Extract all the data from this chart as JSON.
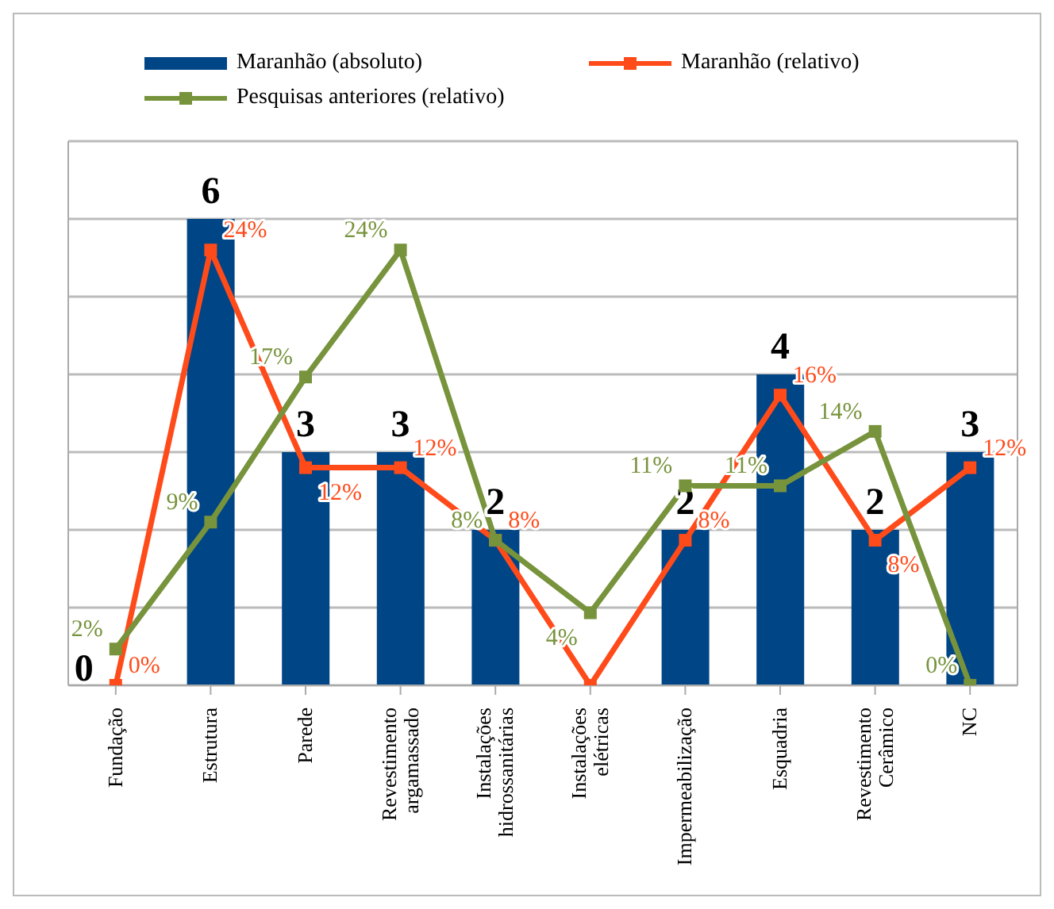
{
  "chart_data": {
    "type": "bar",
    "categories": [
      "Fundação",
      "Estrutura",
      "Parede",
      "Revestimento argamassado",
      "Instalações hidrossanitárias",
      "Instalações elétricas",
      "Impermeabilização",
      "Esquadria",
      "Revestimento Cerâmico",
      "NC"
    ],
    "series": [
      {
        "name": "Maranhão (absoluto)",
        "color": "#004586",
        "values": [
          0,
          6,
          3,
          3,
          2,
          0,
          2,
          4,
          2,
          3
        ],
        "value_labels": [
          "0",
          "6",
          "3",
          "3",
          "2",
          null,
          "2",
          "4",
          "2",
          "3"
        ]
      },
      {
        "name": "Maranhão (relativo)",
        "type": "line",
        "axis": "y2",
        "color": "#ff4a1a",
        "values": [
          0,
          24,
          12,
          12,
          8,
          0,
          8,
          16,
          8,
          12
        ],
        "value_labels": [
          "0%",
          "24%",
          "12%",
          "12%",
          "8%",
          null,
          "8%",
          "16%",
          "8%",
          "12%"
        ]
      },
      {
        "name": "Pesquisas anteriores (relativo)",
        "type": "line",
        "axis": "y2",
        "color": "#77933c",
        "values": [
          2,
          9,
          17,
          24,
          8,
          4,
          11,
          11,
          14,
          0
        ],
        "value_labels": [
          "2%",
          "9%",
          "17%",
          "24%",
          "8%",
          "4%",
          "11%",
          "11%",
          "14%",
          "0%"
        ]
      }
    ],
    "ylim": [
      0,
      7
    ],
    "y2lim": [
      0,
      30
    ],
    "grid": "y",
    "legend": "top",
    "marker": "square",
    "tick_labels": "x"
  }
}
